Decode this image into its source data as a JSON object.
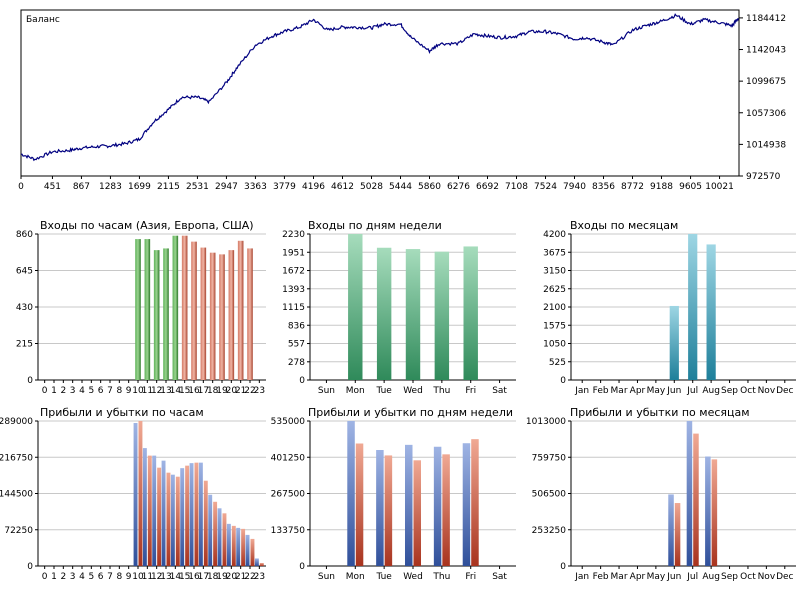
{
  "chart_data": [
    {
      "type": "line",
      "title": "Баланс",
      "x_ticks": [
        "0",
        "451",
        "867",
        "1283",
        "1699",
        "2115",
        "2531",
        "2947",
        "3363",
        "3779",
        "4196",
        "4612",
        "5028",
        "5444",
        "5860",
        "6276",
        "6692",
        "7108",
        "7524",
        "7940",
        "8356",
        "8772",
        "9188",
        "9605",
        "10021"
      ],
      "y_ticks": [
        "1184412",
        "1142043",
        "1099675",
        "1057306",
        "1014938",
        "972570"
      ],
      "ylim": [
        972570,
        1195000
      ],
      "xlim": [
        0,
        10300
      ],
      "color": "#000080",
      "series": [
        {
          "x": [
            0,
            200,
            451,
            700,
            867,
            1100,
            1283,
            1500,
            1699,
            1900,
            2115,
            2300,
            2531,
            2700,
            2947,
            3100,
            3363,
            3600,
            3779,
            4000,
            4196,
            4400,
            4612,
            4800,
            5028,
            5200,
            5444,
            5600,
            5860,
            6000,
            6276,
            6500,
            6692,
            6900,
            7108,
            7300,
            7524,
            7700,
            7940,
            8100,
            8356,
            8500,
            8772,
            9000,
            9188,
            9400,
            9605,
            9800,
            10021,
            10200,
            10290
          ],
          "y": [
            1002000,
            995000,
            1005000,
            1007000,
            1010000,
            1012000,
            1013000,
            1016000,
            1022000,
            1045000,
            1062000,
            1078000,
            1078000,
            1072000,
            1098000,
            1118000,
            1148000,
            1160000,
            1166000,
            1172000,
            1182000,
            1168000,
            1172000,
            1172000,
            1171000,
            1176000,
            1176000,
            1158000,
            1140000,
            1150000,
            1150000,
            1163000,
            1160000,
            1158000,
            1160000,
            1166000,
            1166000,
            1163000,
            1156000,
            1158000,
            1152000,
            1148000,
            1168000,
            1175000,
            1180000,
            1188000,
            1176000,
            1182000,
            1178000,
            1174000,
            1184000
          ]
        }
      ]
    },
    {
      "type": "bar",
      "title": "Входы по часам (Азия, Европа, США)",
      "categories": [
        "0",
        "1",
        "2",
        "3",
        "4",
        "5",
        "6",
        "7",
        "8",
        "9",
        "10",
        "11",
        "12",
        "13",
        "14",
        "15",
        "16",
        "17",
        "18",
        "19",
        "20",
        "21",
        "22",
        "23"
      ],
      "values": [
        0,
        0,
        0,
        0,
        0,
        0,
        0,
        0,
        0,
        0,
        830,
        830,
        765,
        775,
        850,
        850,
        815,
        780,
        750,
        740,
        765,
        820,
        775,
        0
      ],
      "bar_colors": [
        "green",
        "green",
        "green",
        "green",
        "green",
        "green",
        "green",
        "green",
        "green",
        "green",
        "green",
        "green",
        "green",
        "green",
        "green",
        "red",
        "red",
        "red",
        "red",
        "red",
        "red",
        "red",
        "red",
        "red"
      ],
      "y_ticks": [
        "860",
        "645",
        "430",
        "215",
        "0"
      ],
      "ylim": [
        0,
        860
      ]
    },
    {
      "type": "bar",
      "title": "Входы по дням недели",
      "categories": [
        "Sun",
        "Mon",
        "Tue",
        "Wed",
        "Thu",
        "Fri",
        "Sat"
      ],
      "values": [
        0,
        2230,
        2020,
        2000,
        1960,
        2040,
        0
      ],
      "bar_colors": [
        "mint",
        "mint",
        "mint",
        "mint",
        "mint",
        "mint",
        "mint"
      ],
      "y_ticks": [
        "2230",
        "1951",
        "1672",
        "1393",
        "1115",
        "836",
        "557",
        "278",
        "0"
      ],
      "ylim": [
        0,
        2230
      ]
    },
    {
      "type": "bar",
      "title": "Входы по месяцам",
      "categories": [
        "Jan",
        "Feb",
        "Mar",
        "Apr",
        "May",
        "Jun",
        "Jul",
        "Aug",
        "Sep",
        "Oct",
        "Nov",
        "Dec"
      ],
      "values": [
        0,
        0,
        0,
        0,
        0,
        2130,
        4200,
        3900,
        0,
        0,
        0,
        0
      ],
      "bar_colors": [
        "teal",
        "teal",
        "teal",
        "teal",
        "teal",
        "teal",
        "teal",
        "teal",
        "teal",
        "teal",
        "teal",
        "teal"
      ],
      "y_ticks": [
        "4200",
        "3675",
        "3150",
        "2625",
        "2100",
        "1575",
        "1050",
        "525",
        "0"
      ],
      "ylim": [
        0,
        4200
      ]
    },
    {
      "type": "bar",
      "title": "Прибыли и убытки по часам",
      "categories": [
        "0",
        "1",
        "2",
        "3",
        "4",
        "5",
        "6",
        "7",
        "8",
        "9",
        "10",
        "11",
        "12",
        "13",
        "14",
        "15",
        "16",
        "17",
        "18",
        "19",
        "20",
        "21",
        "22",
        "23"
      ],
      "series": [
        {
          "values": [
            0,
            0,
            0,
            0,
            0,
            0,
            0,
            0,
            0,
            0,
            285000,
            235000,
            220000,
            210000,
            182000,
            195000,
            205000,
            206000,
            142000,
            115000,
            84000,
            76000,
            62000,
            15000
          ]
        },
        {
          "values": [
            0,
            0,
            0,
            0,
            0,
            0,
            0,
            0,
            0,
            0,
            289000,
            220000,
            196000,
            186000,
            178000,
            200000,
            206000,
            170000,
            128000,
            105000,
            80000,
            74000,
            54000,
            6000
          ]
        }
      ],
      "y_ticks": [
        "289000",
        "216750",
        "144500",
        "72250",
        "0"
      ],
      "ylim": [
        0,
        289000
      ]
    },
    {
      "type": "bar",
      "title": "Прибыли и убытки по дням недели",
      "categories": [
        "Sun",
        "Mon",
        "Tue",
        "Wed",
        "Thu",
        "Fri",
        "Sat"
      ],
      "series": [
        {
          "values": [
            0,
            535000,
            428000,
            447000,
            440000,
            453000,
            0
          ]
        },
        {
          "values": [
            0,
            452000,
            408000,
            390000,
            412000,
            468000,
            0
          ]
        }
      ],
      "y_ticks": [
        "535000",
        "401250",
        "267500",
        "133750",
        "0"
      ],
      "ylim": [
        0,
        535000
      ]
    },
    {
      "type": "bar",
      "title": "Прибыли и убытки по месяцам",
      "categories": [
        "Jan",
        "Feb",
        "Mar",
        "Apr",
        "May",
        "Jun",
        "Jul",
        "Aug",
        "Sep",
        "Oct",
        "Nov",
        "Dec"
      ],
      "series": [
        {
          "values": [
            0,
            0,
            0,
            0,
            0,
            500000,
            1013000,
            765000,
            0,
            0,
            0,
            0
          ]
        },
        {
          "values": [
            0,
            0,
            0,
            0,
            0,
            440000,
            925000,
            745000,
            0,
            0,
            0,
            0
          ]
        }
      ],
      "y_ticks": [
        "1013000",
        "759750",
        "506500",
        "253250",
        "0"
      ],
      "ylim": [
        0,
        1013000
      ]
    }
  ]
}
